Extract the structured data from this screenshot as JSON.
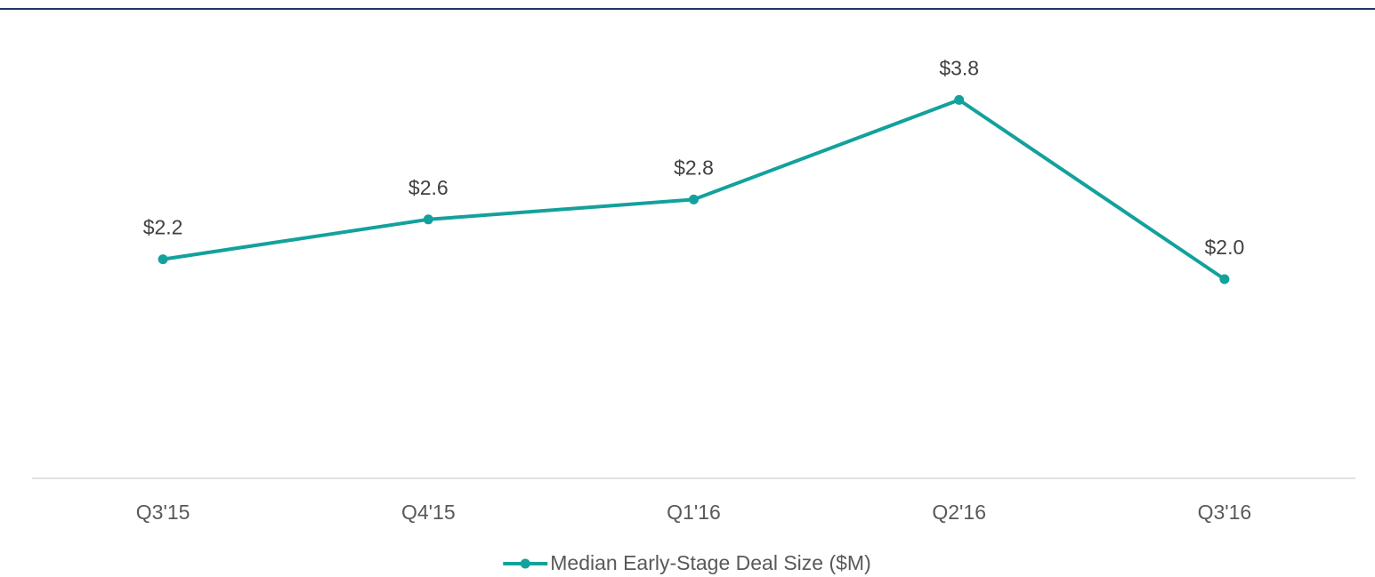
{
  "chart_data": {
    "type": "line",
    "categories": [
      "Q3'15",
      "Q4'15",
      "Q1'16",
      "Q2'16",
      "Q3'16"
    ],
    "series": [
      {
        "name": "Median Early-Stage Deal Size ($M)",
        "color": "#13a19d",
        "values": [
          2.2,
          2.6,
          2.8,
          3.8,
          2.0
        ],
        "value_labels": [
          "$2.2",
          "$2.6",
          "$2.8",
          "$3.8",
          "$2.0"
        ]
      }
    ],
    "ylim": [
      0,
      4.5
    ],
    "legend": "bottom"
  }
}
